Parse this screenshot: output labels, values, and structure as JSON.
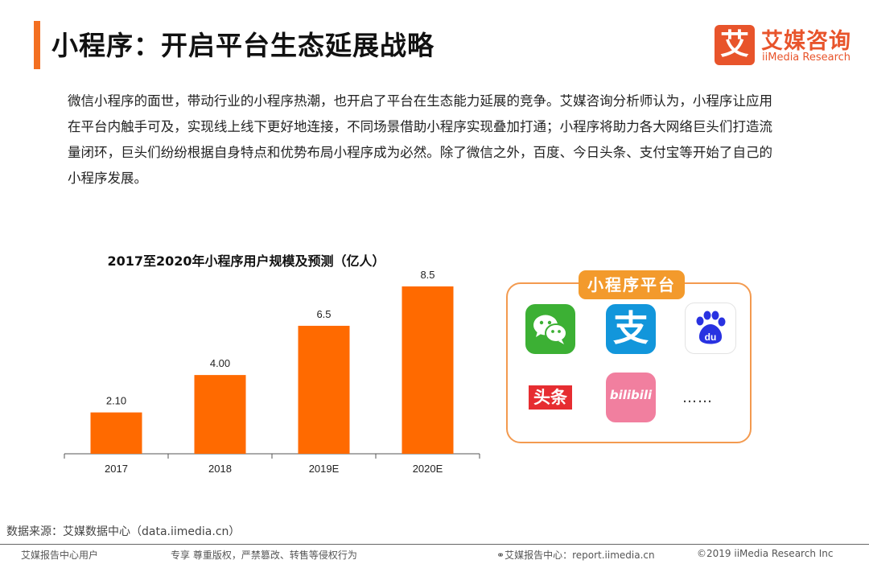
{
  "header": {
    "title": "小程序：开启平台生态延展战略",
    "logo_mark": "艾",
    "logo_name": "艾媒咨询",
    "logo_sub": "iiMedia Research"
  },
  "intro_text": "微信小程序的面世，带动行业的小程序热潮，也开启了平台在生态能力延展的竞争。艾媒咨询分析师认为，小程序让应用在平台内触手可及，实现线上线下更好地连接，不同场景借助小程序实现叠加打通；小程序将助力各大网络巨头们打造流量闭环，巨头们纷纷根据自身特点和优势布局小程序成为必然。除了微信之外，百度、今日头条、支付宝等开始了自己的小程序发展。",
  "chart_data": {
    "type": "bar",
    "title": "2017至2020年小程序用户规模及预测（亿人）",
    "categories": [
      "2017",
      "2018",
      "2019E",
      "2020E"
    ],
    "values": [
      2.1,
      4.0,
      6.5,
      8.5
    ],
    "value_labels": [
      "2.10",
      "4.00",
      "6.5",
      "8.5"
    ],
    "ylim": [
      0,
      8.5
    ],
    "grid": false,
    "legend": "none",
    "bar_color": "#ff6a00"
  },
  "platform_panel": {
    "label": "小程序平台",
    "apps": [
      {
        "name": "WeChat",
        "icon": "wechat-icon",
        "color": "#3cb034"
      },
      {
        "name": "Alipay",
        "icon": "alipay-icon",
        "glyph": "支",
        "color": "#1296db"
      },
      {
        "name": "Baidu",
        "icon": "baidu-icon",
        "glyph": "du",
        "color": "#2932e1"
      },
      {
        "name": "Toutiao",
        "icon": "toutiao-icon",
        "glyph": "头条",
        "color": "#e62d31"
      },
      {
        "name": "Bilibili",
        "icon": "bilibili-icon",
        "glyph": "bilibili",
        "color": "#f17f9f"
      }
    ],
    "more": "……"
  },
  "source_text": "数据来源：艾媒数据中心（data.iimedia.cn）",
  "footer": {
    "left": "艾媒报告中心用户",
    "mid": "专享 尊重版权，严禁篡改、转售等侵权行为",
    "site": "艾媒报告中心：report.iimedia.cn",
    "copyright": "©2019  iiMedia Research  Inc"
  },
  "colors": {
    "accent": "#f36f21",
    "brand": "#e8542b",
    "panel_border": "#f39a4f",
    "panel_label": "#f39a2c"
  }
}
